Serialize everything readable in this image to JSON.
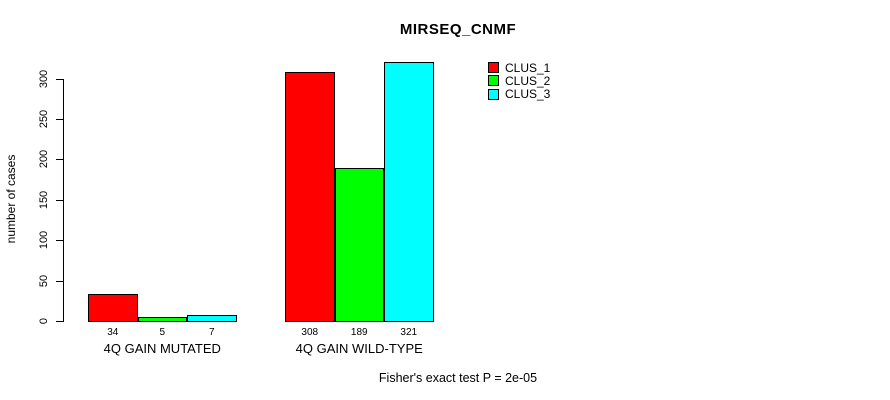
{
  "title": "MIRSEQ_CNMF",
  "footer": "Fisher's exact test P = 2e-05",
  "chart_data": {
    "type": "bar",
    "title": "MIRSEQ_CNMF",
    "xlabel": "",
    "ylabel": "number of cases",
    "categories": [
      "4Q GAIN MUTATED",
      "4Q GAIN WILD-TYPE"
    ],
    "series": [
      {
        "name": "CLUS_1",
        "color": "#ff0000",
        "values": [
          34,
          308
        ]
      },
      {
        "name": "CLUS_2",
        "color": "#00ff00",
        "values": [
          5,
          189
        ]
      },
      {
        "name": "CLUS_3",
        "color": "#00ffff",
        "values": [
          7,
          321
        ]
      }
    ],
    "bar_value_labels": [
      [
        34,
        5,
        7
      ],
      [
        308,
        189,
        321
      ]
    ],
    "yticks": [
      0,
      50,
      100,
      150,
      200,
      250,
      300
    ],
    "ylim": [
      0,
      325
    ],
    "grid": false,
    "legend_position": "top-right",
    "bar_border_color": "#000000",
    "annotation": "Fisher's exact test P = 2e-05"
  }
}
